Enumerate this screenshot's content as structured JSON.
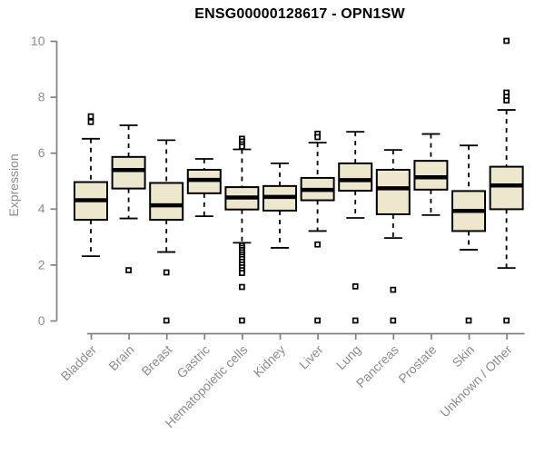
{
  "window": {
    "background": "#ffffff"
  },
  "chart_data": {
    "type": "boxplot",
    "title": "ENSG00000128617 - OPN1SW",
    "xlabel": "",
    "ylabel": "Expression",
    "ylim": [
      0,
      10
    ],
    "yticks": [
      0,
      2,
      4,
      6,
      8,
      10
    ],
    "grid": false,
    "legend": "none",
    "colors": {
      "box_fill": "#ede7ce",
      "box_stroke": "#000000",
      "median": "#000000",
      "whisker": "#000000",
      "outlier_fill": "#ffffff",
      "outlier_stroke": "#000000",
      "axis_line": "#818181",
      "tick_label": "#8c8c8c",
      "title": "#000000"
    },
    "categories": [
      "Bladder",
      "Brain",
      "Breast",
      "Gastric",
      "Hematopoietic cells",
      "Kidney",
      "Liver",
      "Lung",
      "Pancreas",
      "Prostate",
      "Skin",
      "Unknown / Other"
    ],
    "boxes": [
      {
        "category": "Bladder",
        "low": 2.3,
        "q1": 3.6,
        "median": 4.3,
        "q3": 4.95,
        "high": 6.5,
        "outliers": [
          7.3,
          7.1
        ]
      },
      {
        "category": "Brain",
        "low": 3.65,
        "q1": 4.72,
        "median": 5.38,
        "q3": 5.85,
        "high": 6.98,
        "outliers": [
          1.8
        ]
      },
      {
        "category": "Breast",
        "low": 2.45,
        "q1": 3.6,
        "median": 4.12,
        "q3": 4.92,
        "high": 6.45,
        "outliers": [
          1.72,
          0
        ]
      },
      {
        "category": "Gastric",
        "low": 3.73,
        "q1": 4.55,
        "median": 5.03,
        "q3": 5.39,
        "high": 5.78,
        "outliers": []
      },
      {
        "category": "Hematopoietic cells",
        "low": 2.78,
        "q1": 3.97,
        "median": 4.4,
        "q3": 4.77,
        "high": 6.12,
        "outliers": [
          6.5,
          6.4,
          6.3,
          6.22,
          2.68,
          2.6,
          2.52,
          2.44,
          2.36,
          2.28,
          2.2,
          2.1,
          2.0,
          1.9,
          1.8,
          1.7,
          1.2,
          0
        ]
      },
      {
        "category": "Kidney",
        "low": 2.6,
        "q1": 3.93,
        "median": 4.42,
        "q3": 4.81,
        "high": 5.62,
        "outliers": []
      },
      {
        "category": "Liver",
        "low": 3.2,
        "q1": 4.3,
        "median": 4.67,
        "q3": 5.1,
        "high": 6.36,
        "outliers": [
          6.68,
          6.56,
          2.72,
          0
        ]
      },
      {
        "category": "Lung",
        "low": 3.67,
        "q1": 4.64,
        "median": 5.02,
        "q3": 5.62,
        "high": 6.75,
        "outliers": [
          1.22,
          0
        ]
      },
      {
        "category": "Pancreas",
        "low": 2.95,
        "q1": 3.8,
        "median": 4.73,
        "q3": 5.39,
        "high": 6.1,
        "outliers": [
          1.1,
          0
        ]
      },
      {
        "category": "Prostate",
        "low": 3.77,
        "q1": 4.68,
        "median": 5.12,
        "q3": 5.71,
        "high": 6.67,
        "outliers": []
      },
      {
        "category": "Skin",
        "low": 2.53,
        "q1": 3.2,
        "median": 3.92,
        "q3": 4.63,
        "high": 6.26,
        "outliers": [
          0
        ]
      },
      {
        "category": "Unknown / Other",
        "low": 1.88,
        "q1": 3.98,
        "median": 4.83,
        "q3": 5.5,
        "high": 7.53,
        "outliers": [
          10,
          8.15,
          8.0,
          7.87,
          0
        ]
      }
    ]
  }
}
